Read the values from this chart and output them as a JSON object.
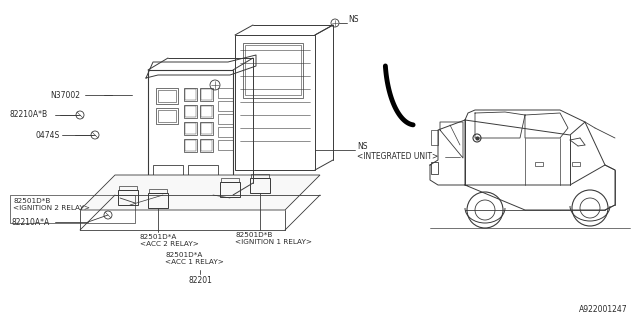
{
  "bg_color": "#ffffff",
  "lc": "#3a3a3a",
  "part_number": "A922001247",
  "labels": {
    "NS_top": "NS",
    "NS_integrated": "NS\n<INTEGRATED UNIT>",
    "N37002": "N37002",
    "82210A_B": "82210A*B",
    "0474S": "0474S",
    "82501D_B_ign2": "82501D*B\n<IGNITION 2 RELAY>",
    "82210A_A": "82210A*A",
    "82501D_A_acc2": "82501D*A\n<ACC 2 RELAY>",
    "82501D_B_ign1": "82501D*B\n<IGNITION 1 RELAY>",
    "82501D_A_acc1": "82501D*A\n<ACC 1 RELAY>",
    "82201": "82201"
  },
  "fig_width": 6.4,
  "fig_height": 3.2,
  "dpi": 100
}
